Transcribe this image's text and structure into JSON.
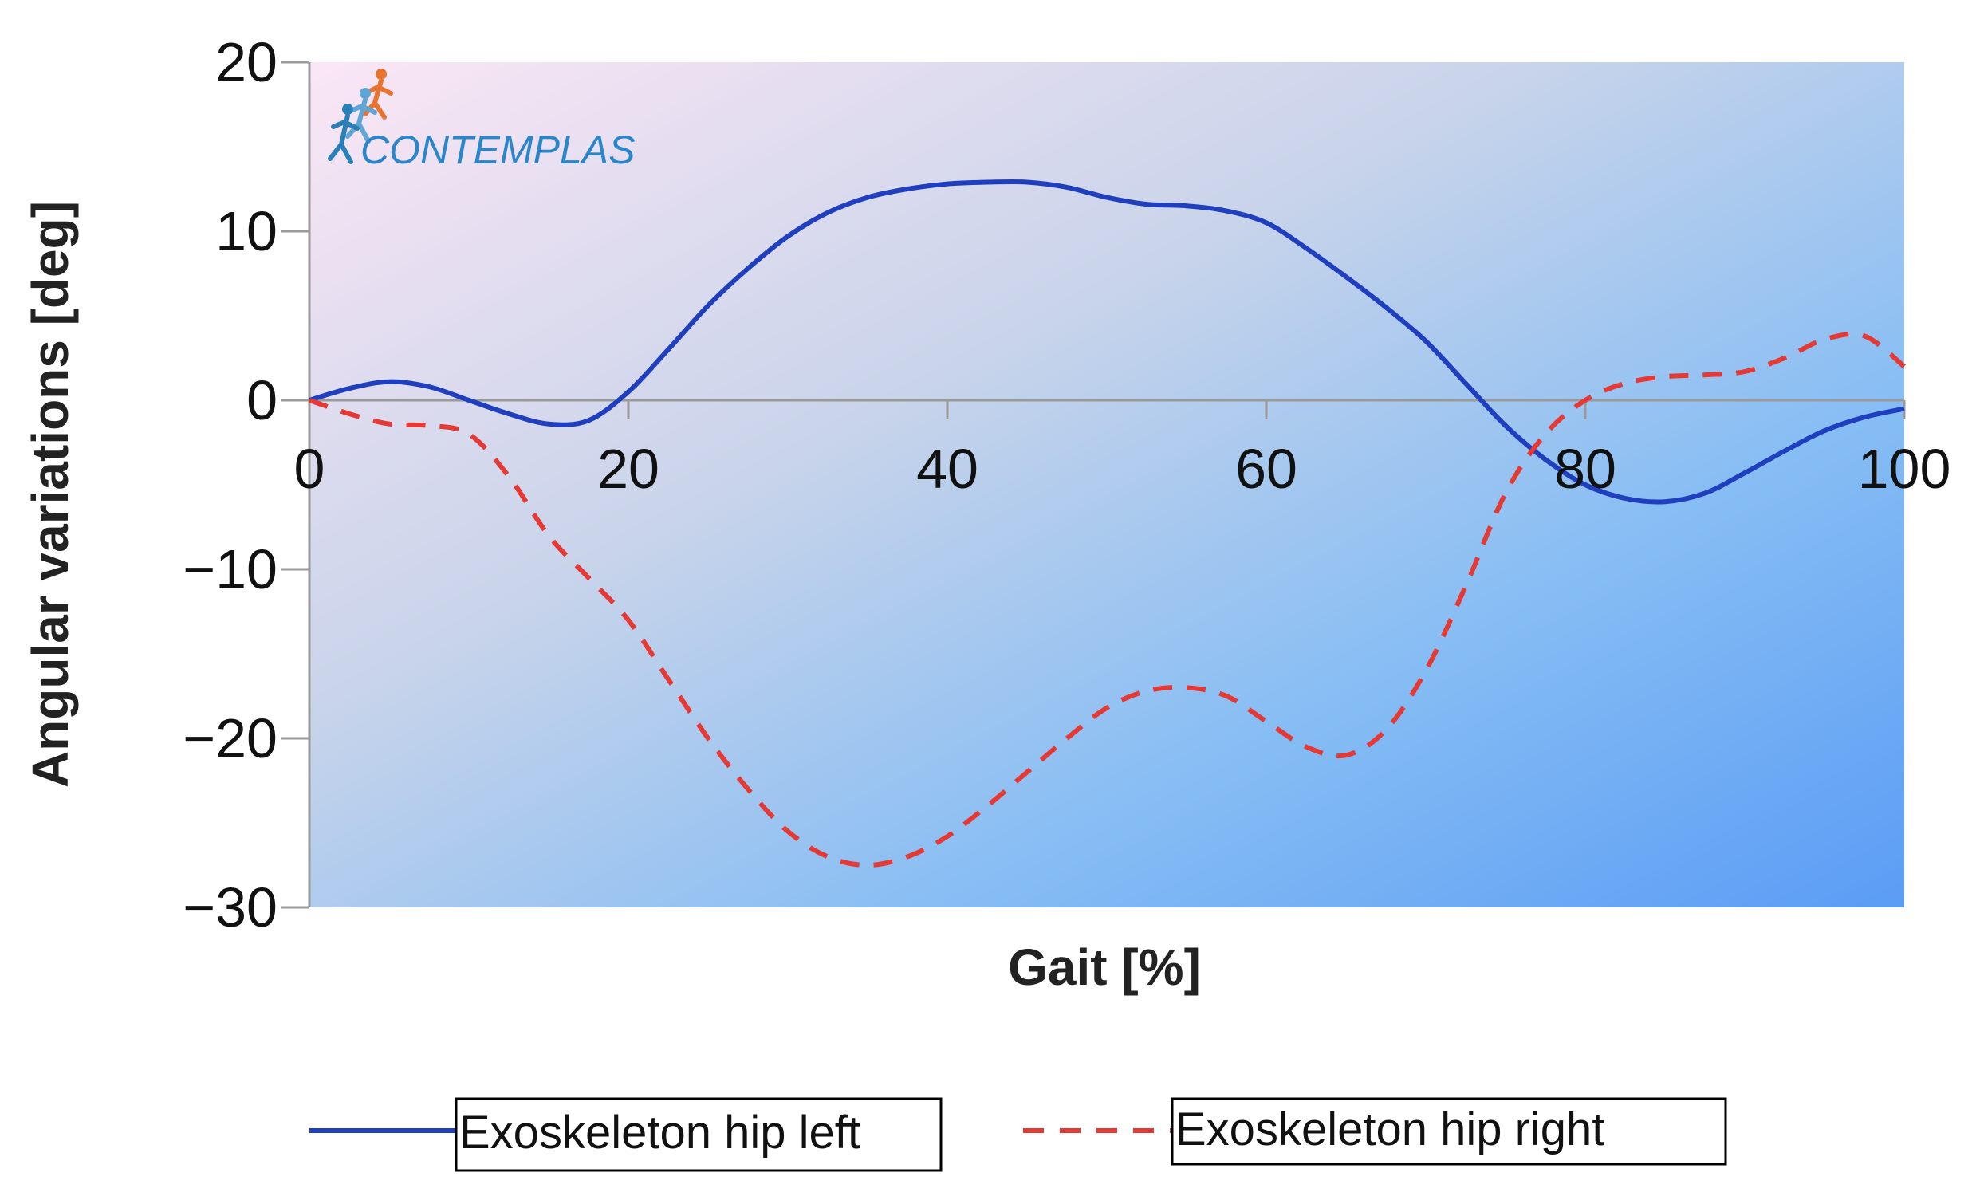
{
  "chart_data": {
    "type": "line",
    "title": "",
    "xlabel": "Gait [%]",
    "ylabel": "Angular variations [deg]",
    "xlim": [
      0,
      100
    ],
    "ylim": [
      -30,
      20
    ],
    "x_ticks": [
      0,
      20,
      40,
      60,
      80,
      100
    ],
    "y_ticks": [
      20,
      10,
      0,
      -10,
      -20,
      -30
    ],
    "y_tick_labels": [
      "20",
      "10",
      "0",
      "−10",
      "−20",
      "−30"
    ],
    "grid": false,
    "legend_position": "bottom",
    "logo_text": "CONTEMPLAS",
    "background_gradient": [
      "#fbe6f5",
      "#c9d4ea",
      "#86bdf4",
      "#5b9cf5"
    ],
    "series": [
      {
        "name": "Exoskeleton hip left",
        "color": "#1f3fbf",
        "style": "solid",
        "x": [
          0,
          2.5,
          5,
          7.5,
          10,
          12.5,
          15,
          17.5,
          20,
          22.5,
          25,
          27.5,
          30,
          32.5,
          35,
          37.5,
          40,
          42.5,
          45,
          47.5,
          50,
          52.5,
          55,
          57.5,
          60,
          62.5,
          65,
          67.5,
          70,
          72.5,
          75,
          77.5,
          80,
          82.5,
          85,
          87.5,
          90,
          92.5,
          95,
          97.5,
          100
        ],
        "y": [
          0,
          0.7,
          1.1,
          0.8,
          0.0,
          -0.8,
          -1.4,
          -1.2,
          0.5,
          3.0,
          5.6,
          7.8,
          9.7,
          11.1,
          12.0,
          12.5,
          12.8,
          12.9,
          12.9,
          12.6,
          12.0,
          11.6,
          11.5,
          11.2,
          10.5,
          9.0,
          7.3,
          5.5,
          3.5,
          1.0,
          -1.5,
          -3.5,
          -5.0,
          -5.8,
          -6.0,
          -5.5,
          -4.3,
          -3.0,
          -1.8,
          -1.0,
          -0.5
        ]
      },
      {
        "name": "Exoskeleton hip right",
        "color": "#e53935",
        "style": "dashed",
        "x": [
          0,
          2.5,
          5,
          7.5,
          10,
          12.5,
          15,
          17.5,
          20,
          22.5,
          25,
          27.5,
          30,
          32.5,
          35,
          37.5,
          40,
          42.5,
          45,
          47.5,
          50,
          52.5,
          55,
          57.5,
          60,
          62.5,
          65,
          67.5,
          70,
          72.5,
          75,
          77.5,
          80,
          82.5,
          85,
          87.5,
          90,
          92.5,
          95,
          97.5,
          100
        ],
        "y": [
          0,
          -0.8,
          -1.4,
          -1.5,
          -2.0,
          -4.5,
          -8.0,
          -10.5,
          -13.0,
          -16.5,
          -20.0,
          -23.0,
          -25.5,
          -27.0,
          -27.5,
          -27.0,
          -25.8,
          -24.0,
          -22.0,
          -20.0,
          -18.2,
          -17.2,
          -17.0,
          -17.5,
          -19.0,
          -20.5,
          -21.0,
          -19.5,
          -16.0,
          -11.0,
          -5.5,
          -2.0,
          0.0,
          1.0,
          1.4,
          1.5,
          1.7,
          2.5,
          3.6,
          3.8,
          2.0
        ]
      }
    ]
  }
}
